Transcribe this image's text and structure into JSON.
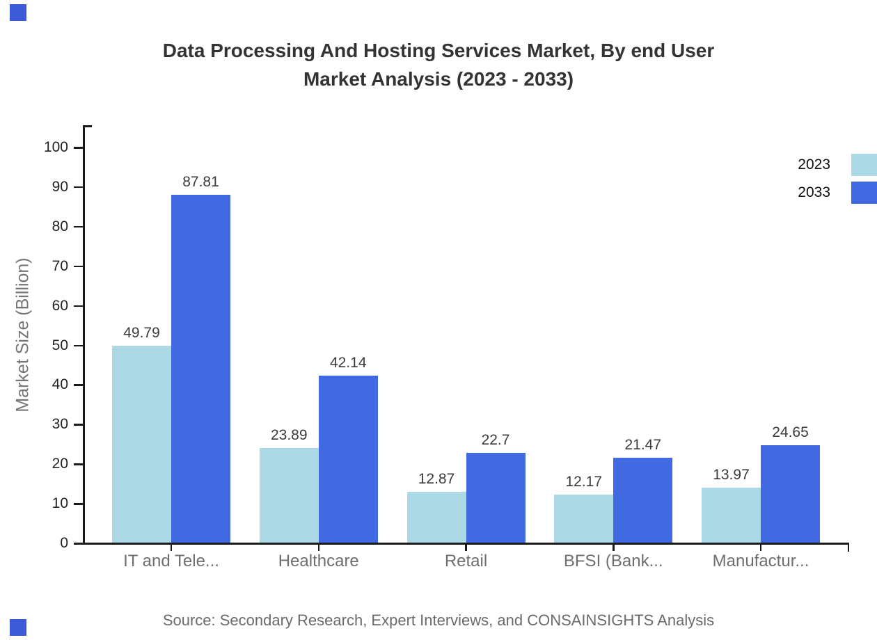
{
  "header": {
    "title_line1": "Data Processing And Hosting Services Market, By end User",
    "title_line2": "Market Analysis (2023 - 2033)"
  },
  "chart_data": {
    "type": "bar",
    "title": "Data Processing And Hosting Services Market, By end User Market Analysis (2023 - 2033)",
    "xlabel": "",
    "ylabel": "Market Size (Billion)",
    "categories": [
      "IT and Tele...",
      "Healthcare",
      "Retail",
      "BFSI (Bank...",
      "Manufactur..."
    ],
    "series": [
      {
        "name": "2023",
        "color": "#ADD8E6",
        "values": [
          49.79,
          23.89,
          12.87,
          12.17,
          13.97
        ],
        "labels": [
          "49.79",
          "23.89",
          "12.87",
          "12.17",
          "13.97"
        ]
      },
      {
        "name": "2033",
        "color": "#4169E1",
        "values": [
          87.81,
          42.14,
          22.7,
          21.47,
          24.65
        ],
        "labels": [
          "87.81",
          "42.14",
          "22.7",
          "21.47",
          "24.65"
        ]
      }
    ],
    "ylim": [
      0,
      100
    ],
    "y_tick_step": 10,
    "y_tick_labels": [
      "0",
      "10",
      "20",
      "30",
      "40",
      "50",
      "60",
      "70",
      "80",
      "90",
      "100"
    ],
    "grid": false,
    "legend_position": "top-right"
  },
  "legend": {
    "items": [
      {
        "label": "2023",
        "color": "#ADD8E6"
      },
      {
        "label": "2033",
        "color": "#4169E1"
      }
    ]
  },
  "footer": {
    "source": "Source: Secondary Research, Expert Interviews, and CONSAINSIGHTS Analysis"
  },
  "colors": {
    "bar_2023": "#ADD8E6",
    "bar_2033": "#4169E1",
    "axis": "#1a1a1a",
    "tick_label": "#222222",
    "category_label": "#6e6e6e",
    "value_label": "#3a3a3a",
    "title": "#333333",
    "source": "#6b6b6b",
    "ylabel": "#757575",
    "brand_mark": "#3D5BD9"
  }
}
